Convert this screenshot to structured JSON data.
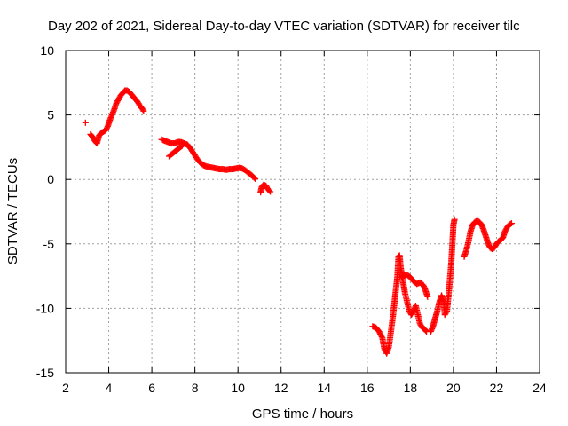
{
  "chart_data": {
    "type": "scatter",
    "title": "Day 202 of 2021, Sidereal Day-to-day VTEC variation (SDTVAR) for receiver tilc",
    "xlabel": "GPS time / hours",
    "ylabel": "SDTVAR / TECUs",
    "xlim": [
      2,
      24
    ],
    "ylim": [
      -15,
      10
    ],
    "xticks": [
      2,
      4,
      6,
      8,
      10,
      12,
      14,
      16,
      18,
      20,
      22,
      24
    ],
    "yticks": [
      -15,
      -10,
      -5,
      0,
      5,
      10
    ],
    "grid": true,
    "marker": "+",
    "color": "#ff0000",
    "series": [
      {
        "name": "SDTVAR",
        "segments": [
          [
            [
              2.92,
              4.4
            ]
          ],
          [
            [
              3.15,
              3.5
            ],
            [
              3.25,
              3.3
            ],
            [
              3.35,
              3.0
            ],
            [
              3.45,
              2.8
            ],
            [
              3.55,
              3.4
            ],
            [
              3.65,
              3.6
            ],
            [
              3.75,
              3.7
            ],
            [
              3.85,
              3.8
            ],
            [
              3.95,
              4.1
            ],
            [
              4.05,
              4.6
            ],
            [
              4.15,
              5.0
            ],
            [
              4.25,
              5.4
            ],
            [
              4.35,
              5.9
            ],
            [
              4.45,
              6.2
            ],
            [
              4.55,
              6.5
            ],
            [
              4.65,
              6.7
            ],
            [
              4.75,
              6.9
            ],
            [
              4.85,
              6.9
            ],
            [
              4.95,
              6.8
            ],
            [
              5.05,
              6.6
            ],
            [
              5.15,
              6.4
            ],
            [
              5.25,
              6.2
            ],
            [
              5.35,
              6.0
            ],
            [
              5.45,
              5.7
            ],
            [
              5.55,
              5.5
            ],
            [
              5.62,
              5.3
            ]
          ],
          [
            [
              6.45,
              3.1
            ],
            [
              6.6,
              3.0
            ],
            [
              6.75,
              2.9
            ],
            [
              6.9,
              2.8
            ],
            [
              7.05,
              2.8
            ],
            [
              7.2,
              2.9
            ],
            [
              7.35,
              2.9
            ],
            [
              7.5,
              2.8
            ],
            [
              7.65,
              2.7
            ],
            [
              7.8,
              2.4
            ],
            [
              7.95,
              2.0
            ],
            [
              8.1,
              1.6
            ],
            [
              8.25,
              1.3
            ],
            [
              8.4,
              1.1
            ],
            [
              8.55,
              1.0
            ],
            [
              8.7,
              0.95
            ],
            [
              8.85,
              0.9
            ],
            [
              9.0,
              0.85
            ],
            [
              9.15,
              0.8
            ],
            [
              9.3,
              0.8
            ],
            [
              9.45,
              0.75
            ],
            [
              9.6,
              0.8
            ],
            [
              9.75,
              0.8
            ],
            [
              9.9,
              0.85
            ],
            [
              10.05,
              0.9
            ],
            [
              10.2,
              0.85
            ],
            [
              10.35,
              0.7
            ],
            [
              10.5,
              0.5
            ],
            [
              10.65,
              0.3
            ],
            [
              10.8,
              0.05
            ]
          ],
          [
            [
              6.8,
              1.8
            ],
            [
              6.95,
              2.0
            ],
            [
              7.1,
              2.2
            ],
            [
              7.25,
              2.4
            ],
            [
              7.4,
              2.6
            ]
          ],
          [
            [
              11.05,
              -1.0
            ],
            [
              11.1,
              -0.6
            ],
            [
              11.2,
              -0.4
            ],
            [
              11.3,
              -0.5
            ],
            [
              11.4,
              -0.8
            ],
            [
              11.5,
              -0.95
            ]
          ],
          [
            [
              16.25,
              -11.4
            ],
            [
              16.4,
              -11.5
            ],
            [
              16.55,
              -11.8
            ],
            [
              16.7,
              -12.3
            ],
            [
              16.8,
              -13.2
            ],
            [
              16.9,
              -13.5
            ],
            [
              17.0,
              -13.0
            ],
            [
              17.1,
              -11.8
            ],
            [
              17.2,
              -10.5
            ],
            [
              17.3,
              -9.0
            ],
            [
              17.4,
              -7.5
            ],
            [
              17.45,
              -6.0
            ],
            [
              17.5,
              -5.9
            ],
            [
              17.55,
              -6.8
            ],
            [
              17.65,
              -7.8
            ],
            [
              17.75,
              -8.8
            ],
            [
              17.85,
              -9.5
            ],
            [
              17.95,
              -10.2
            ],
            [
              18.05,
              -10.5
            ],
            [
              18.15,
              -10.2
            ],
            [
              18.25,
              -9.8
            ],
            [
              18.35,
              -10.5
            ],
            [
              18.45,
              -11.2
            ],
            [
              18.55,
              -11.5
            ],
            [
              18.65,
              -11.6
            ],
            [
              18.75,
              -11.8
            ]
          ],
          [
            [
              17.6,
              -7.6
            ],
            [
              17.7,
              -7.4
            ],
            [
              17.85,
              -7.4
            ],
            [
              18.0,
              -7.6
            ],
            [
              18.15,
              -7.9
            ],
            [
              18.3,
              -8.1
            ],
            [
              18.45,
              -8.0
            ],
            [
              18.6,
              -8.2
            ],
            [
              18.7,
              -8.6
            ],
            [
              18.8,
              -9.1
            ]
          ],
          [
            [
              18.95,
              -11.8
            ],
            [
              19.05,
              -11.4
            ],
            [
              19.15,
              -10.8
            ],
            [
              19.25,
              -10.2
            ],
            [
              19.35,
              -9.5
            ],
            [
              19.45,
              -9.0
            ],
            [
              19.55,
              -9.5
            ],
            [
              19.6,
              -10.5
            ],
            [
              19.7,
              -10.2
            ],
            [
              19.8,
              -8.5
            ],
            [
              19.9,
              -6.5
            ],
            [
              19.95,
              -5.0
            ],
            [
              20.0,
              -3.5
            ],
            [
              20.05,
              -3.1
            ]
          ],
          [
            [
              20.5,
              -6.0
            ],
            [
              20.6,
              -5.5
            ],
            [
              20.7,
              -4.8
            ],
            [
              20.8,
              -4.0
            ],
            [
              20.9,
              -3.5
            ],
            [
              21.0,
              -3.3
            ],
            [
              21.1,
              -3.2
            ],
            [
              21.2,
              -3.3
            ],
            [
              21.3,
              -3.5
            ],
            [
              21.4,
              -3.9
            ],
            [
              21.5,
              -4.4
            ],
            [
              21.6,
              -4.9
            ],
            [
              21.7,
              -5.3
            ],
            [
              21.8,
              -5.4
            ],
            [
              21.9,
              -5.3
            ],
            [
              22.0,
              -5.0
            ],
            [
              22.1,
              -4.8
            ],
            [
              22.2,
              -4.7
            ],
            [
              22.3,
              -4.5
            ],
            [
              22.4,
              -4.0
            ],
            [
              22.5,
              -3.7
            ],
            [
              22.6,
              -3.5
            ],
            [
              22.7,
              -3.4
            ]
          ]
        ]
      }
    ]
  }
}
